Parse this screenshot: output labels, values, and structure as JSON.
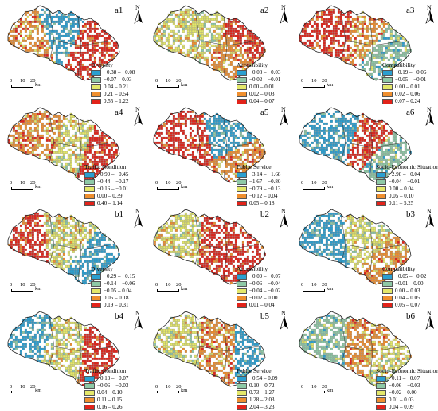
{
  "scale_bar": {
    "ticks": [
      "0",
      "10",
      "20"
    ],
    "unit": "km"
  },
  "north_label": "N",
  "colors": [
    "#2b9fd0",
    "#8ec9a6",
    "#e4e86a",
    "#ef8f2f",
    "#e2231a"
  ],
  "panels": [
    {
      "id": "a1",
      "title": "Diversity",
      "classes": [
        "−0.38 – −0.08",
        "−0.07 – 0.03",
        "0.04 – 0.21",
        "0.21 – 0.54",
        "0.55 – 1.22"
      ]
    },
    {
      "id": "a2",
      "title": "Accessibility",
      "classes": [
        "−0.08 – −0.03",
        "−0.02 – −0.01",
        "0.00 – 0.01",
        "0.02 – 0.03",
        "0.04 – 0.07"
      ]
    },
    {
      "id": "a3",
      "title": "Compatibility",
      "classes": [
        "−0.19 – −0.06",
        "−0.05 – −0.01",
        "0.00 – 0.01",
        "0.02 – 0.06",
        "0.07 – 0.24"
      ]
    },
    {
      "id": "a4",
      "title": "Traffic Condition",
      "classes": [
        "−0.99 – −0.45",
        "−0.44 – −0.17",
        "−0.16 – −0.01",
        "0.00 – 0.39",
        "0.40 – 1.14"
      ]
    },
    {
      "id": "a5",
      "title": "Public Service",
      "classes": [
        "−3.14 – −1.68",
        "−1.67 – −0.80",
        "−0.79 – −0.13",
        "−0.12 – 0.04",
        "0.05 – 0.18"
      ]
    },
    {
      "id": "a6",
      "title": "Socio-Economic Situation",
      "classes": [
        "−2.98 – −0.04",
        "−0.04 – −0.01",
        "0.00 – 0.04",
        "0.05 – 0.10",
        "0.11 – 5.25"
      ]
    },
    {
      "id": "b1",
      "title": "Diversity",
      "classes": [
        "−0.29 – −0.15",
        "−0.14 – −0.06",
        "−0.05 – 0.04",
        "0.05 – 0.18",
        "0.19 – 0.31"
      ]
    },
    {
      "id": "b2",
      "title": "Accessibility",
      "classes": [
        "−0.09 – −0.07",
        "−0.06 – −0.04",
        "−0.04 – −0.02",
        "−0.02 – 0.00",
        "0.01 – 0.04"
      ]
    },
    {
      "id": "b3",
      "title": "Compatibility",
      "classes": [
        "−0.05 – −0.02",
        "−0.01 – 0.00",
        "0.00 – 0.03",
        "0.04 – 0.05",
        "0.05 – 0.07"
      ]
    },
    {
      "id": "b4",
      "title": "Traffic Condition",
      "classes": [
        "−0.13 – −0.07",
        "−0.06 – −0.03",
        "0.04 – 0.10",
        "0.11 – 0.15",
        "0.16 – 0.26"
      ]
    },
    {
      "id": "b5",
      "title": "Public Service",
      "classes": [
        "−0.54 – 0.09",
        "0.10 – 0.72",
        "0.73 – 1.27",
        "1.28 – 2.03",
        "2.04 – 3.23"
      ]
    },
    {
      "id": "b6",
      "title": "Socio-Economic Situation",
      "classes": [
        "−0.11 – −0.07",
        "−0.06 – −0.03",
        "−0.02 – 0.00",
        "0.01 – 0.03",
        "0.04 – 0.09"
      ]
    }
  ]
}
